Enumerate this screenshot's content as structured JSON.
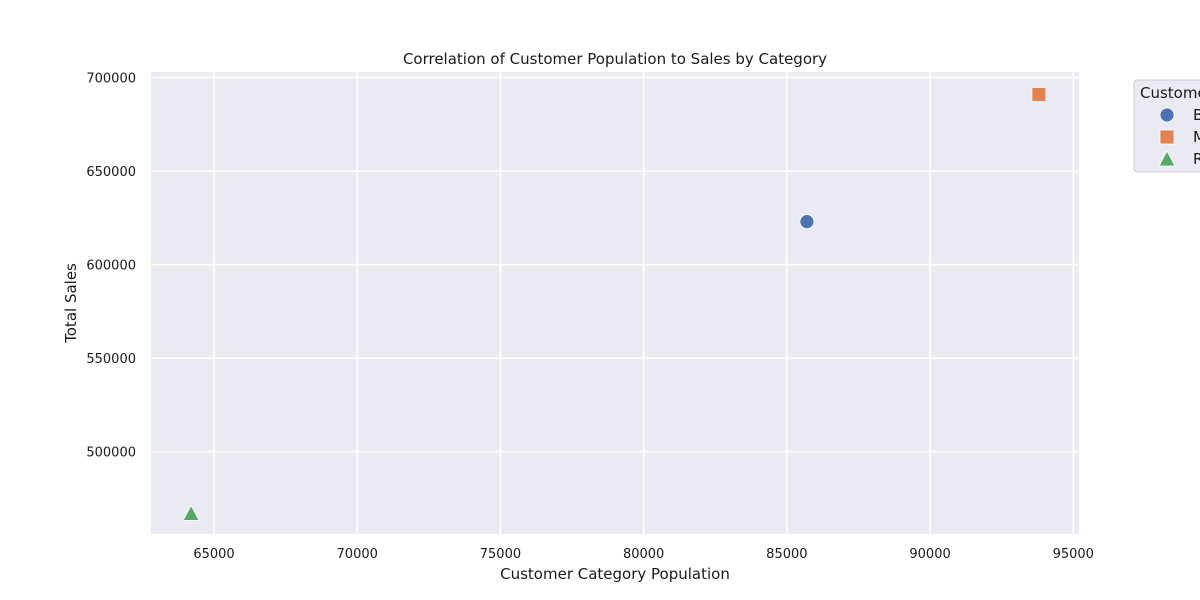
{
  "chart_data": {
    "type": "scatter",
    "title": "Correlation of Customer Population to Sales by Category",
    "xlabel": "Customer Category Population",
    "ylabel": "Total Sales",
    "xlim": [
      62800,
      95200
    ],
    "ylim": [
      456000,
      703000
    ],
    "xticks": [
      65000,
      70000,
      75000,
      80000,
      85000,
      90000,
      95000
    ],
    "yticks": [
      500000,
      550000,
      600000,
      650000,
      700000
    ],
    "grid": true,
    "legend": {
      "title": "Custome",
      "placement": "outside-right (clipped)"
    },
    "series": [
      {
        "name": "B",
        "marker": "circle",
        "color": "#4c72b0",
        "points": [
          {
            "x": 85700,
            "y": 623000
          }
        ]
      },
      {
        "name": "M",
        "marker": "square",
        "color": "#dd8452",
        "points": [
          {
            "x": 93800,
            "y": 691000
          }
        ]
      },
      {
        "name": "R",
        "marker": "triangle",
        "color": "#55a868",
        "points": [
          {
            "x": 64200,
            "y": 467000
          }
        ]
      }
    ]
  }
}
